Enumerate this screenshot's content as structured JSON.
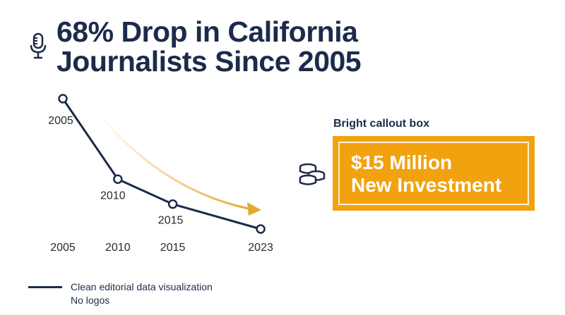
{
  "title": "68% Drop in California Journalists Since 2005",
  "icons": {
    "title_icon": "microphone-icon",
    "callout_icon": "coins-icon"
  },
  "colors": {
    "navy": "#1c2b4a",
    "accent": "#f2a20f",
    "arrow": "#e6a92e"
  },
  "chart_data": {
    "type": "line",
    "x": [
      "2005",
      "2010",
      "2015",
      "2023"
    ],
    "series": [
      {
        "values": [
          100,
          58,
          45,
          32
        ],
        "point_labels": [
          "2005",
          "2010",
          "2015",
          ""
        ]
      }
    ],
    "xlabel": "",
    "ylabel": "",
    "grid": false,
    "annotation": "decline-trend-arrow"
  },
  "callout": {
    "caption": "Bright callout box",
    "line1": "$15 Million",
    "line2": "New Investment"
  },
  "legend": {
    "line1": "Clean editorial data visualization",
    "line2": "No logos"
  }
}
